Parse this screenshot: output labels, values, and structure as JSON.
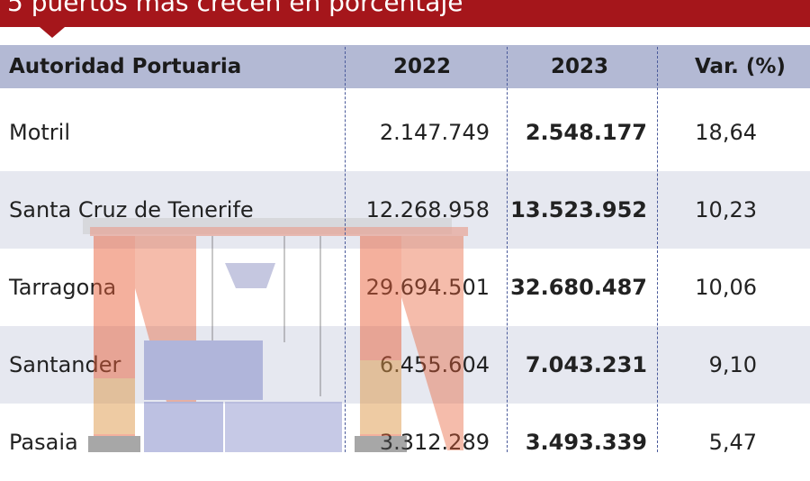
{
  "title": "5 puertos más crecen en porcentaje",
  "columns": {
    "port": "Autoridad Portuaria",
    "y2022": "2022",
    "y2023": "2023",
    "var": "Var. (%)"
  },
  "rows": [
    {
      "port": "Motril",
      "y2022": "2.147.749",
      "y2023": "2.548.177",
      "var": "18,64"
    },
    {
      "port": "Santa Cruz de Tenerife",
      "y2022": "12.268.958",
      "y2023": "13.523.952",
      "var": "10,23"
    },
    {
      "port": "Tarragona",
      "y2022": "29.694.501",
      "y2023": "32.680.487",
      "var": "10,06"
    },
    {
      "port": "Santander",
      "y2022": "6.455.604",
      "y2023": "7.043.231",
      "var": "9,10"
    },
    {
      "port": "Pasaia",
      "y2022": "3.312.289",
      "y2023": "3.493.339",
      "var": "5,47"
    }
  ],
  "colors": {
    "title_bg": "#a5161b",
    "header_bg": "#b3b9d4",
    "row_alt_bg": "#e6e8f0",
    "crane": "#e8603a",
    "container": "#7a82c4"
  },
  "illustration": "crane-with-containers-icon"
}
